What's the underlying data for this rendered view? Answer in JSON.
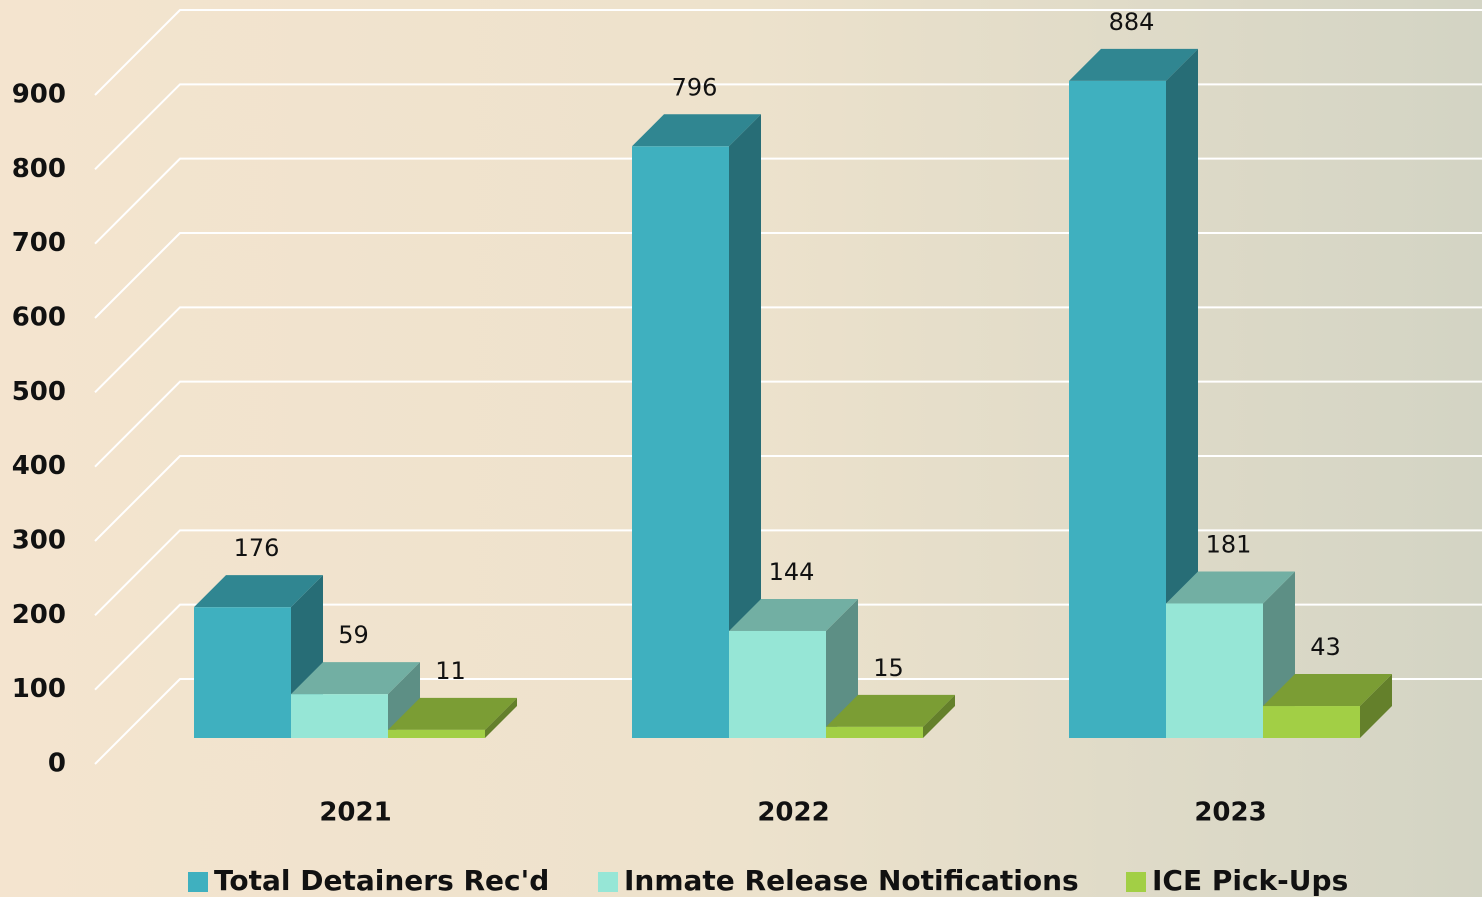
{
  "chart_data": {
    "type": "bar3d",
    "categories": [
      "2021",
      "2022",
      "2023"
    ],
    "series": [
      {
        "name": "Total Detainers Rec'd",
        "color": "#3fb0bf",
        "values": [
          176,
          796,
          884
        ]
      },
      {
        "name": "Inmate Release Notifications",
        "color": "#96e6d6",
        "values": [
          59,
          144,
          181
        ]
      },
      {
        "name": "ICE Pick-Ups",
        "color": "#a2cf45",
        "values": [
          11,
          15,
          43
        ]
      }
    ],
    "ylim": [
      0,
      900
    ],
    "yticks": [
      0,
      100,
      200,
      300,
      400,
      500,
      600,
      700,
      800,
      900
    ],
    "grid": true
  }
}
